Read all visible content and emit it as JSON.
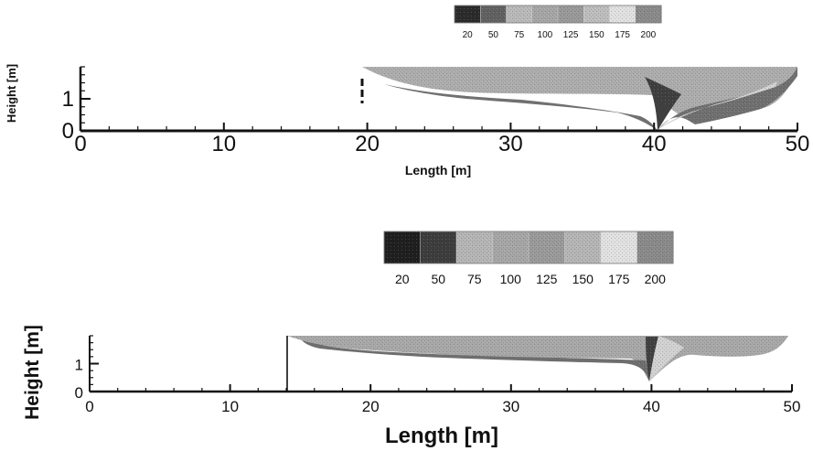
{
  "chart_data": [
    {
      "type": "heatmap",
      "title": "",
      "xlabel": "Length [m]",
      "ylabel": "Height [m]",
      "xlim": [
        0,
        50
      ],
      "ylim": [
        0,
        2
      ],
      "x_ticks": [
        {
          "value": 0,
          "label": "0"
        },
        {
          "value": 10,
          "label": "10"
        },
        {
          "value": 20,
          "label": "20"
        },
        {
          "value": 30,
          "label": "30"
        },
        {
          "value": 40,
          "label": "40"
        },
        {
          "value": 50,
          "label": "50"
        }
      ],
      "y_ticks": [
        {
          "value": 0,
          "label": "0"
        },
        {
          "value": 1,
          "label": "1"
        }
      ],
      "colorbar": {
        "labels": [
          "20",
          "50",
          "75",
          "100",
          "125",
          "150",
          "175",
          "200"
        ],
        "colors": [
          "#2b2b2b",
          "#616161",
          "#b9b9b9",
          "#a6a6a6",
          "#999999",
          "#bdbdbd",
          "#e1e1e1",
          "#8a8a8a"
        ]
      },
      "grid": false,
      "legend_placement": "top"
    },
    {
      "type": "heatmap",
      "title": "",
      "xlabel": "Length [m]",
      "ylabel": "Height [m]",
      "xlim": [
        0,
        50
      ],
      "ylim": [
        0,
        2
      ],
      "x_ticks": [
        {
          "value": 0,
          "label": "0"
        },
        {
          "value": 10,
          "label": "10"
        },
        {
          "value": 20,
          "label": "20"
        },
        {
          "value": 30,
          "label": "30"
        },
        {
          "value": 40,
          "label": "40"
        },
        {
          "value": 50,
          "label": "50"
        }
      ],
      "y_ticks": [
        {
          "value": 0,
          "label": "0"
        },
        {
          "value": 1,
          "label": "1"
        }
      ],
      "colorbar": {
        "labels": [
          "20",
          "50",
          "75",
          "100",
          "125",
          "150",
          "175",
          "200"
        ],
        "colors": [
          "#1f1f1f",
          "#3d3d3d",
          "#b5b5b5",
          "#a6a6a6",
          "#9a9a9a",
          "#b5b5b5",
          "#e1e1e1",
          "#8a8a8a"
        ]
      },
      "grid": false,
      "legend_placement": "top"
    }
  ]
}
